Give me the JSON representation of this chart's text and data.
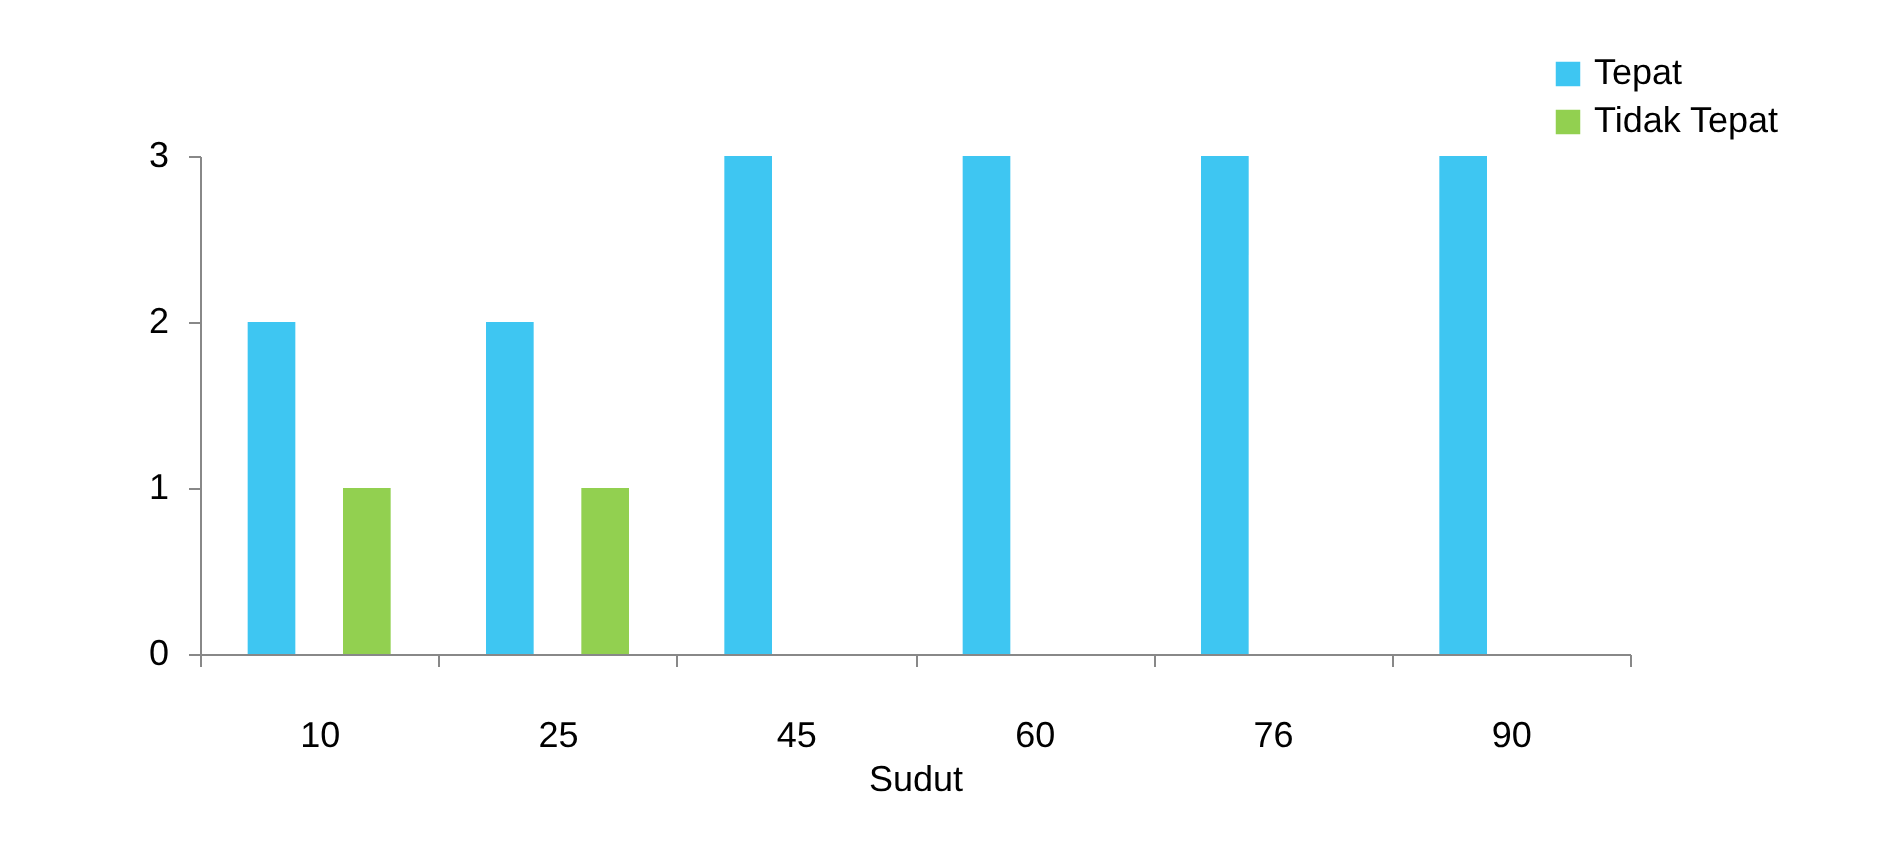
{
  "chart_data": {
    "type": "bar",
    "xlabel": "Sudut",
    "categories": [
      "10",
      "25",
      "45",
      "60",
      "76",
      "90"
    ],
    "series": [
      {
        "name": "Tepat",
        "color": "#3ec6f2",
        "values": [
          2,
          2,
          3,
          3,
          3,
          3
        ]
      },
      {
        "name": "Tidak Tepat",
        "color": "#92d050",
        "values": [
          1,
          1,
          0,
          0,
          0,
          0
        ]
      }
    ],
    "ylim": [
      0,
      3
    ],
    "yticks": [
      0,
      1,
      2,
      3
    ],
    "grid": false,
    "legend": "top right"
  }
}
